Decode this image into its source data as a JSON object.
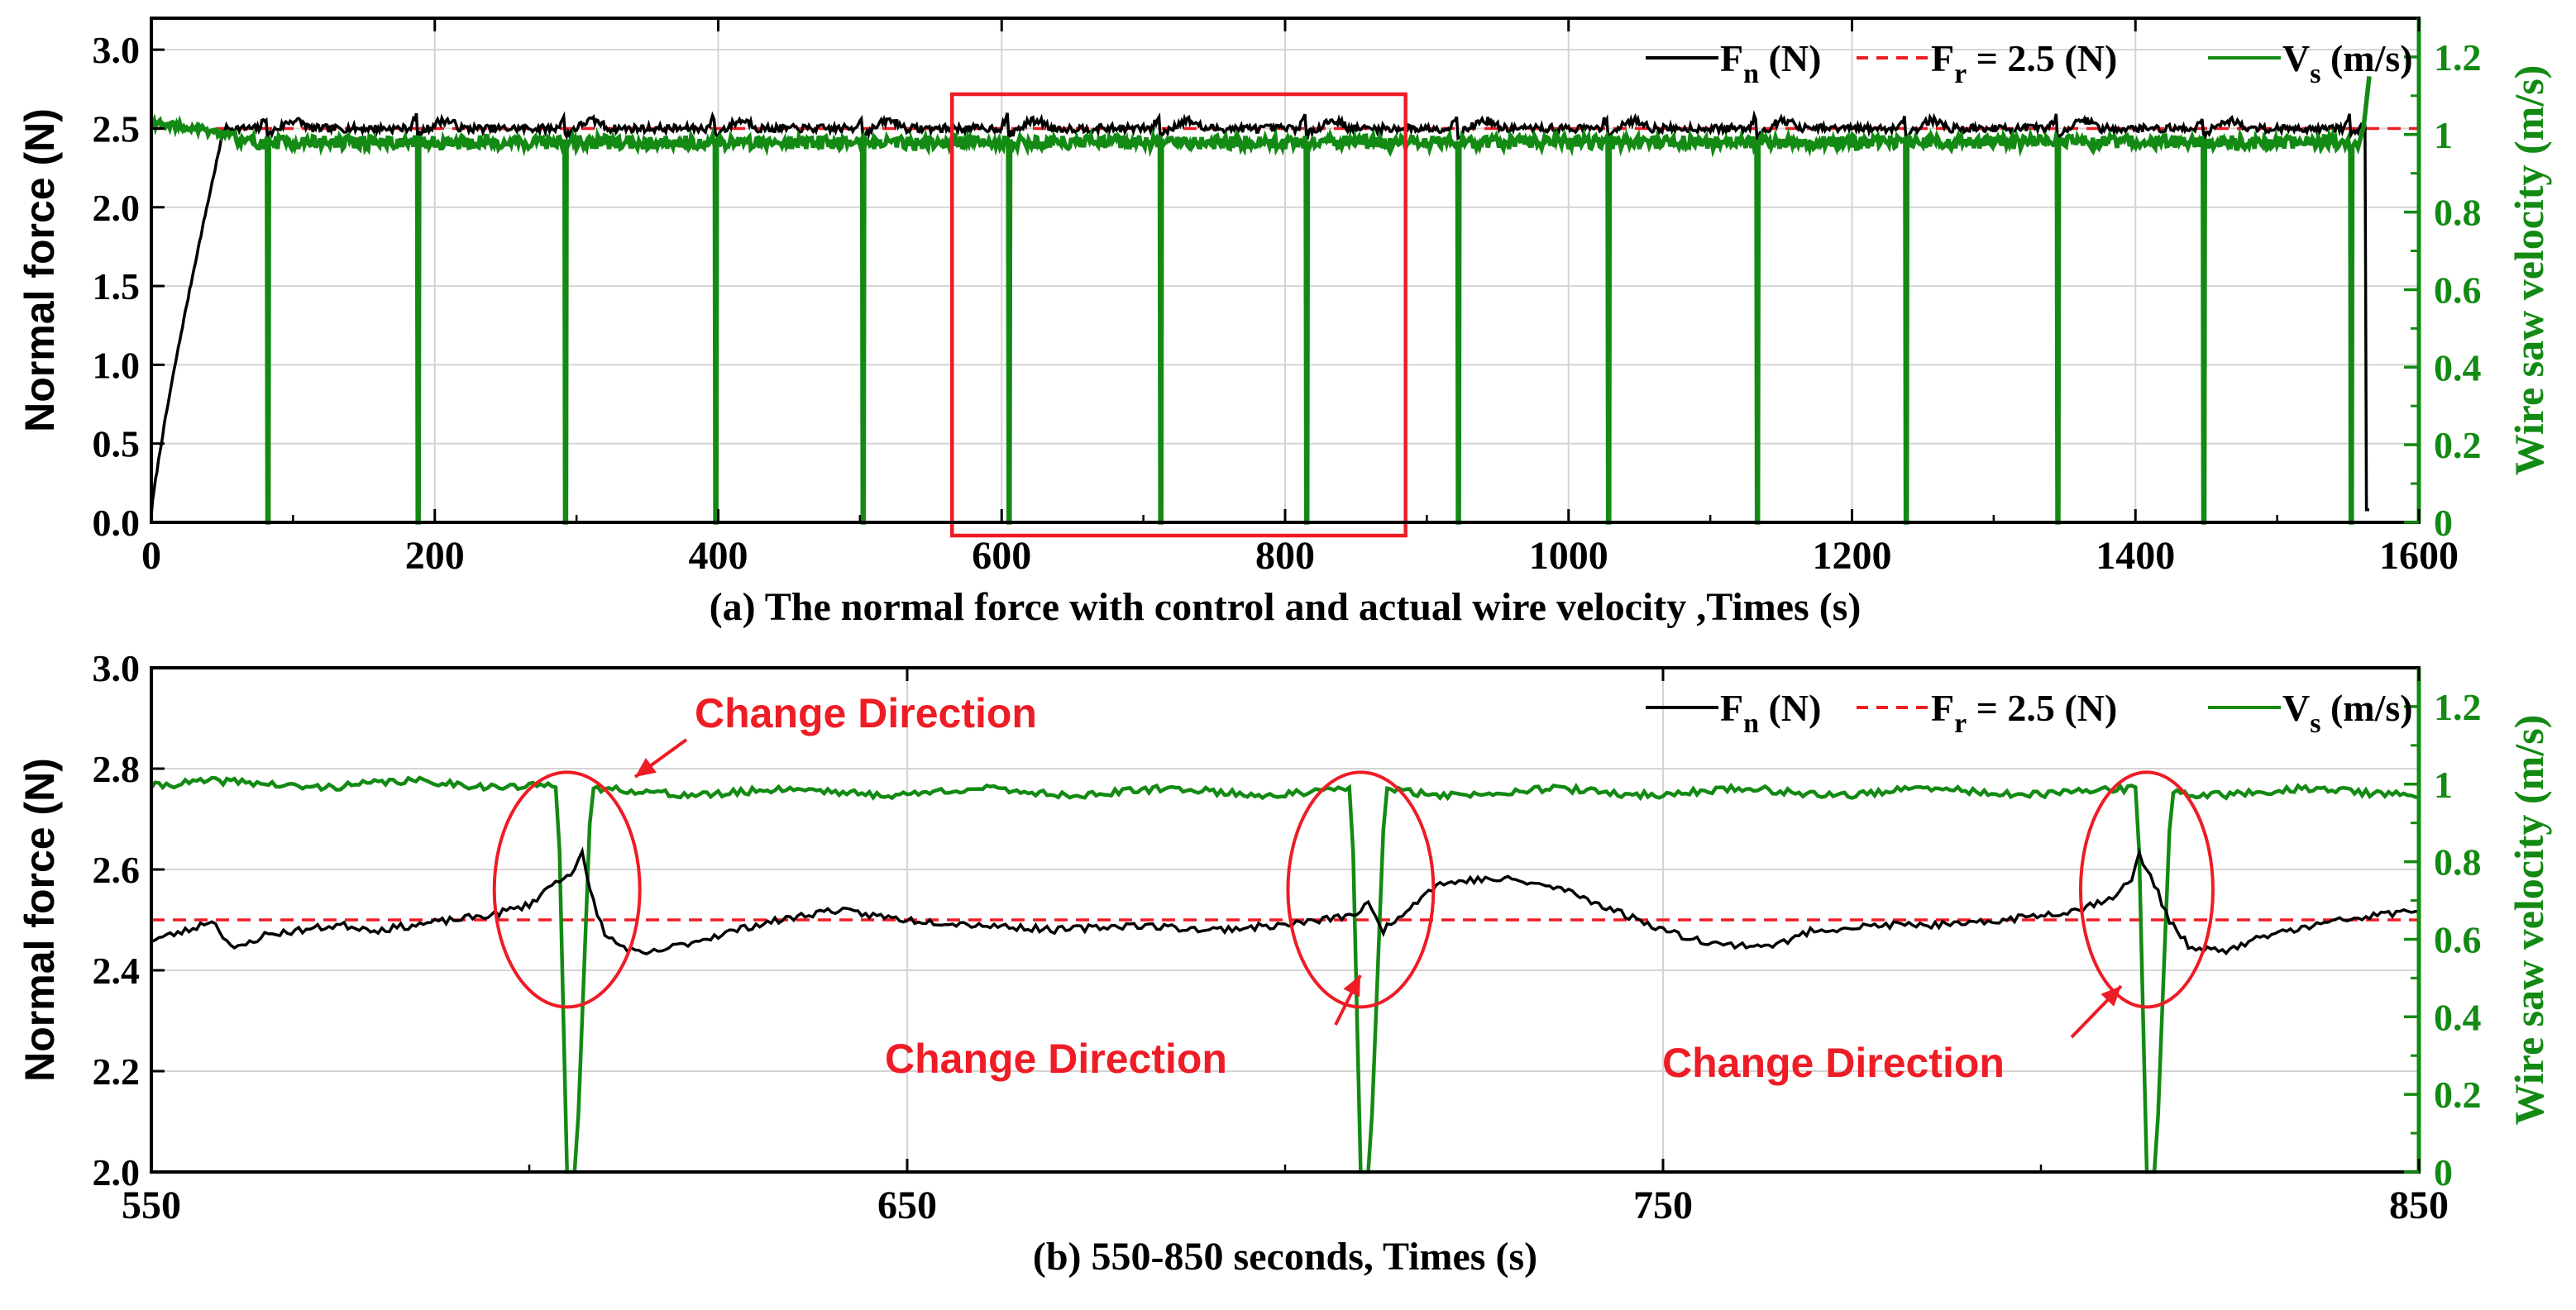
{
  "colors": {
    "force": "#000000",
    "reference": "#ee1c25",
    "velocity": "#138a13",
    "annotation": "#ee1c25",
    "grid": "#d4d4d4"
  },
  "chart_data": [
    {
      "id": "a",
      "type": "line",
      "caption": "(a) The normal force with control and actual wire velocity ,Times (s)",
      "ylabel": "Normal force (N)",
      "y2label": "Wire saw velocity (m/s)",
      "xlim": [
        0,
        1600
      ],
      "ylim": [
        0,
        3.2
      ],
      "y2lim": [
        0,
        1.3
      ],
      "xticks": [
        0,
        200,
        400,
        600,
        800,
        1000,
        1200,
        1400,
        1600
      ],
      "yticks": [
        0.0,
        0.5,
        1.0,
        1.5,
        2.0,
        2.5,
        3.0
      ],
      "ytick_labels": [
        "0.0",
        "0.5",
        "1.0",
        "1.5",
        "2.0",
        "2.5",
        "3.0"
      ],
      "y2ticks": [
        0,
        0.2,
        0.4,
        0.6,
        0.8,
        1,
        1.2
      ],
      "y2tick_labels": [
        "0",
        "0.2",
        "0.4",
        "0.6",
        "0.8",
        "1",
        "1.2"
      ],
      "grid": true,
      "legend": {
        "position": "top-right",
        "entries": [
          {
            "main": "F",
            "sub": "n",
            "rest": " (N)",
            "style": "solid",
            "color": "#000000"
          },
          {
            "main": "F",
            "sub": "r",
            "rest": " = 2.5 (N)",
            "style": "dashed",
            "color": "#ee1c25"
          },
          {
            "main": "V",
            "sub": "s",
            "rest": " (m/s)",
            "style": "solid",
            "color": "#138a13"
          }
        ]
      },
      "reference_value": 2.5,
      "force_ramp": {
        "start_value": 0.05,
        "end_time": 50,
        "end_value": 2.45
      },
      "force_baseline": 2.5,
      "force_drop": {
        "time": 1562,
        "value": 0.08
      },
      "velocity_baseline": 1.0,
      "velocity_dips": [
        82,
        188,
        292,
        398,
        502,
        605,
        712,
        815,
        922,
        1028,
        1133,
        1238,
        1345,
        1448,
        1552
      ],
      "velocity_end": {
        "time": 1565,
        "value": 1.15
      },
      "zoom_box": {
        "x_range": [
          565,
          885
        ],
        "y_range": [
          0,
          3.2
        ]
      }
    },
    {
      "id": "b",
      "type": "line",
      "caption": "(b) 550-850 seconds, Times (s)",
      "ylabel": "Normal force (N)",
      "y2label": "Wire saw velocity (m/s)",
      "xlim": [
        550,
        850
      ],
      "ylim": [
        2.0,
        3.0
      ],
      "y2lim": [
        0,
        1.3
      ],
      "xticks": [
        550,
        650,
        750,
        850
      ],
      "yticks": [
        2.0,
        2.2,
        2.4,
        2.6,
        2.8,
        3.0
      ],
      "ytick_labels": [
        "2.0",
        "2.2",
        "2.4",
        "2.6",
        "2.8",
        "3.0"
      ],
      "y2ticks": [
        0,
        0.2,
        0.4,
        0.6,
        0.8,
        1,
        1.2
      ],
      "y2tick_labels": [
        "0",
        "0.2",
        "0.4",
        "0.6",
        "0.8",
        "1",
        "1.2"
      ],
      "grid": true,
      "legend": {
        "position": "top-right",
        "entries": [
          {
            "main": "F",
            "sub": "n",
            "rest": " (N)",
            "style": "solid",
            "color": "#000000"
          },
          {
            "main": "F",
            "sub": "r",
            "rest": " = 2.5 (N)",
            "style": "dashed",
            "color": "#ee1c25"
          },
          {
            "main": "V",
            "sub": "s",
            "rest": " (m/s)",
            "style": "solid",
            "color": "#138a13"
          }
        ]
      },
      "reference_value": 2.5,
      "velocity_dips": [
        605,
        710,
        814
      ],
      "velocity_baseline_before": 1.0,
      "velocity_baseline_after": 0.98,
      "force_points": [
        [
          550,
          2.46
        ],
        [
          555,
          2.48
        ],
        [
          558,
          2.5
        ],
        [
          561,
          2.44
        ],
        [
          565,
          2.47
        ],
        [
          570,
          2.48
        ],
        [
          575,
          2.49
        ],
        [
          580,
          2.48
        ],
        [
          585,
          2.49
        ],
        [
          590,
          2.5
        ],
        [
          595,
          2.51
        ],
        [
          600,
          2.53
        ],
        [
          603,
          2.57
        ],
        [
          606,
          2.6
        ],
        [
          607,
          2.63
        ],
        [
          608,
          2.56
        ],
        [
          610,
          2.47
        ],
        [
          612,
          2.45
        ],
        [
          615,
          2.43
        ],
        [
          620,
          2.45
        ],
        [
          630,
          2.49
        ],
        [
          640,
          2.52
        ],
        [
          650,
          2.5
        ],
        [
          660,
          2.49
        ],
        [
          670,
          2.48
        ],
        [
          680,
          2.49
        ],
        [
          690,
          2.48
        ],
        [
          700,
          2.49
        ],
        [
          705,
          2.5
        ],
        [
          709,
          2.51
        ],
        [
          711,
          2.53
        ],
        [
          713,
          2.48
        ],
        [
          716,
          2.52
        ],
        [
          720,
          2.57
        ],
        [
          725,
          2.58
        ],
        [
          730,
          2.58
        ],
        [
          737,
          2.56
        ],
        [
          745,
          2.51
        ],
        [
          752,
          2.47
        ],
        [
          758,
          2.45
        ],
        [
          765,
          2.45
        ],
        [
          770,
          2.48
        ],
        [
          780,
          2.49
        ],
        [
          790,
          2.49
        ],
        [
          800,
          2.51
        ],
        [
          805,
          2.52
        ],
        [
          810,
          2.55
        ],
        [
          812,
          2.58
        ],
        [
          813,
          2.63
        ],
        [
          815,
          2.57
        ],
        [
          817,
          2.5
        ],
        [
          820,
          2.44
        ],
        [
          825,
          2.44
        ],
        [
          830,
          2.47
        ],
        [
          840,
          2.5
        ],
        [
          850,
          2.52
        ]
      ],
      "annotations": [
        {
          "text": "Change Direction",
          "target_time": 605
        },
        {
          "text": "Change Direction",
          "target_time": 710
        },
        {
          "text": "Change Direction",
          "target_time": 814
        }
      ]
    }
  ]
}
